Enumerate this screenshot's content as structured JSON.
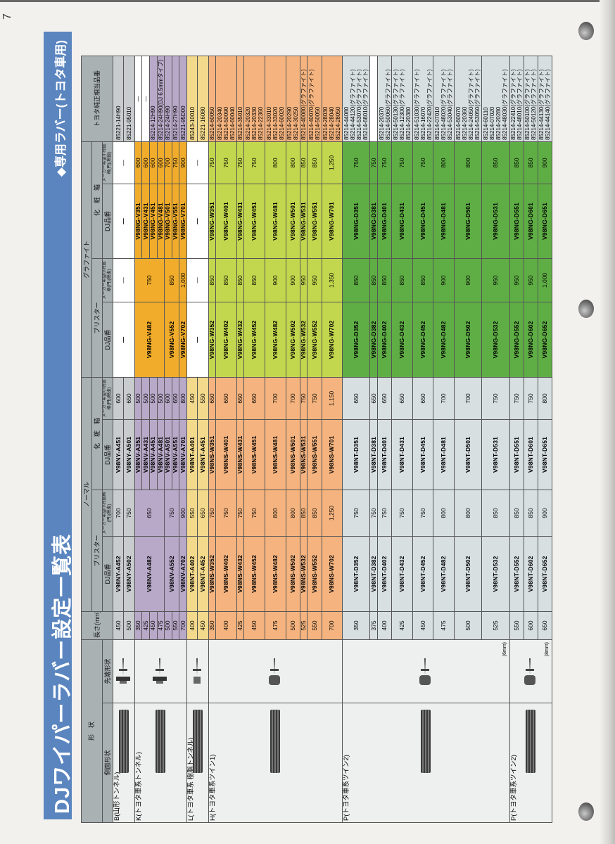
{
  "page_number": "7",
  "title": "DJワイパーラバー設定一覧表",
  "subtitle": "◆専用ラバー(トヨタ車用)",
  "colors": {
    "band": "#5a85bf",
    "header": "#a9b1b3"
  },
  "headers": {
    "shape": "形　状",
    "side_shape": "側面形状",
    "tip_shape": "先端形状",
    "length": "長さ(mm)",
    "normal": "ノーマル",
    "graphite": "グラファイト",
    "blister": "ブリスター",
    "box": "化　粧　箱",
    "dj": "DJ品番",
    "price": "メーカー希望小売価格(円)(税抜)",
    "toyota": "トヨタ純正相当品番"
  },
  "groups": [
    {
      "side": "B(山形トンネル)",
      "tip_icon": "tunnel-tip-icon",
      "color": "#c8ccce",
      "gcolor": "#ffffff",
      "rows": [
        {
          "len": "450",
          "nb": {
            "dj": "V98NY-A452",
            "price": "700"
          },
          "nx": {
            "dj": "V98NY-A451",
            "price": "600"
          },
          "gb": {
            "dj": "—",
            "price": "—",
            "rows": 2
          },
          "gx": {
            "dj": "—",
            "price": "—",
            "rows": 2
          },
          "toyota": [
            "85221-14H90"
          ]
        },
        {
          "len": "500",
          "nb": {
            "dj": "V98NY-A502",
            "price": "750"
          },
          "nx": {
            "dj": "V98NY-A501",
            "price": "650"
          },
          "toyota": [
            "85221-95010"
          ]
        }
      ]
    },
    {
      "side": "K(トヨタ車系トンネル)",
      "tip_icon": "tunnel-tip-icon",
      "color": "#b9a9c9",
      "gcolor": "#f0ac2a",
      "rows": [
        {
          "len": "350",
          "nb": {
            "dj": "V98NV-A482",
            "price": "650",
            "rows": 4
          },
          "nx": {
            "dj": "V98NV-A351",
            "price": "500"
          },
          "gb": {
            "dj": "V98NG-V482",
            "price": "750",
            "rows": 4
          },
          "gx": {
            "dj": "V98NG-V351",
            "price": "600"
          },
          "toyota": [
            "—"
          ]
        },
        {
          "len": "425",
          "nx": {
            "dj": "V98NV-A431",
            "price": "500"
          },
          "gx": {
            "dj": "V98NG-V431",
            "price": "600"
          },
          "toyota": [
            "—"
          ]
        },
        {
          "len": "450",
          "nx": {
            "dj": "V98NV-A451",
            "price": "500"
          },
          "gx": {
            "dj": "V98NG-V451",
            "price": "600"
          },
          "toyota": [
            "85214-12H90"
          ]
        },
        {
          "len": "475",
          "nx": {
            "dj": "V98NV-A481",
            "price": "500"
          },
          "gx": {
            "dj": "V98NG-V481",
            "price": "600"
          },
          "toyota": [
            "85214-24H90(DJ 6.5mmタイプ)"
          ]
        },
        {
          "len": "500",
          "nb": {
            "dj": "V98NV-A552",
            "price": "750",
            "rows": 2
          },
          "nx": {
            "dj": "V98NV-A501",
            "price": "600"
          },
          "gb": {
            "dj": "V98NG-V552",
            "price": "850",
            "rows": 2
          },
          "gx": {
            "dj": "V98NG-V501",
            "price": "700"
          },
          "toyota": [
            "85214-24H90"
          ]
        },
        {
          "len": "550",
          "nx": {
            "dj": "V98NV-A551",
            "price": "650"
          },
          "gx": {
            "dj": "V98NG-V551",
            "price": "750"
          },
          "toyota": [
            "85214-27H90"
          ]
        },
        {
          "len": "700",
          "nb": {
            "dj": "V98NV-A702",
            "price": "900"
          },
          "nx": {
            "dj": "V98NV-A701",
            "price": "800"
          },
          "gb": {
            "dj": "V98NG-V702",
            "price": "1,000"
          },
          "gx": {
            "dj": "V98NG-V701",
            "price": "900"
          },
          "toyota": [
            "85221-95D00"
          ]
        }
      ]
    },
    {
      "side": "L(トヨタ車系 樹脂トンネル)",
      "tip_icon": "resin-tunnel-tip-icon",
      "color": "#f3d98c",
      "gcolor": "#ffffff",
      "rows": [
        {
          "len": "400",
          "nb": {
            "dj": "V98NT-A402",
            "price": "550"
          },
          "nx": {
            "dj": "V98NT-A401",
            "price": "450"
          },
          "gb": {
            "dj": "—",
            "price": "—",
            "rows": 2
          },
          "gx": {
            "dj": "—",
            "price": "—",
            "rows": 2
          },
          "toyota": [
            "85243-10010"
          ]
        },
        {
          "len": "450",
          "nb": {
            "dj": "V98NT-A452",
            "price": "650"
          },
          "nx": {
            "dj": "V98NT-A451",
            "price": "550"
          },
          "toyota": [
            "85221-16080"
          ]
        }
      ]
    },
    {
      "side": "H(トヨタ車系ツイン1)",
      "tip_icon": "twin-tip-icon",
      "color": "#f5b47f",
      "gcolor": "#c3d74e",
      "rows": [
        {
          "len": "350",
          "nb": {
            "dj": "V98NS-W352",
            "price": "750"
          },
          "nx": {
            "dj": "V98NS-W351",
            "price": "650"
          },
          "gb": {
            "dj": "V98NG-W352",
            "price": "850"
          },
          "gx": {
            "dj": "V98NG-W351",
            "price": "750"
          },
          "toyota": [
            "85214-60050"
          ]
        },
        {
          "len": "400",
          "nb": {
            "dj": "V98NS-W402",
            "price": "750"
          },
          "nx": {
            "dj": "V98NS-W401",
            "price": "650"
          },
          "gb": {
            "dj": "V98NG-W402",
            "price": "850"
          },
          "gx": {
            "dj": "V98NG-W401",
            "price": "750"
          },
          "toyota": [
            "85214-20340",
            "85214-50090",
            "85214-60040"
          ]
        },
        {
          "len": "425",
          "nb": {
            "dj": "V98NS-W432",
            "price": "750"
          },
          "nx": {
            "dj": "V98NS-W431",
            "price": "650"
          },
          "gb": {
            "dj": "V98NG-W432",
            "price": "850"
          },
          "gx": {
            "dj": "V98NG-W431",
            "price": "750"
          },
          "toyota": [
            "85214-35010"
          ]
        },
        {
          "len": "450",
          "nb": {
            "dj": "V98NS-W452",
            "price": "750"
          },
          "nx": {
            "dj": "V98NS-W451",
            "price": "650"
          },
          "gb": {
            "dj": "V98NG-W452",
            "price": "850"
          },
          "gx": {
            "dj": "V98NG-W451",
            "price": "750"
          },
          "toyota": [
            "85214-20320",
            "85214-20330",
            "85214-22360"
          ]
        },
        {
          "len": "475",
          "nb": {
            "dj": "V98NS-W482",
            "price": "800"
          },
          "nx": {
            "dj": "V98NS-W481",
            "price": "700"
          },
          "gb": {
            "dj": "V98NG-W482",
            "price": "900"
          },
          "gx": {
            "dj": "V98NG-W481",
            "price": "800"
          },
          "toyota": [
            "85214-33010",
            "85214-33020",
            "85214-60020"
          ]
        },
        {
          "len": "500",
          "nb": {
            "dj": "V98NS-W502",
            "price": "800"
          },
          "nx": {
            "dj": "V98NS-W501",
            "price": "700"
          },
          "gb": {
            "dj": "V98NG-W502",
            "price": "900"
          },
          "gx": {
            "dj": "V98NG-W501",
            "price": "800"
          },
          "toyota": [
            "85214-20290",
            "85214-30250"
          ]
        },
        {
          "len": "525",
          "nb": {
            "dj": "V98NS-W532",
            "price": "850"
          },
          "nx": {
            "dj": "V98NS-W531",
            "price": "750"
          },
          "gb": {
            "dj": "V98NG-W532",
            "price": "950"
          },
          "gx": {
            "dj": "V98NG-W531",
            "price": "850"
          },
          "toyota": [
            "85214-40080(グラファイト)"
          ]
        },
        {
          "len": "550",
          "nb": {
            "dj": "V98NS-W552",
            "price": "850"
          },
          "nx": {
            "dj": "V98NS-W551",
            "price": "750"
          },
          "gb": {
            "dj": "V98NG-W552",
            "price": "950"
          },
          "gx": {
            "dj": "V98NG-W551",
            "price": "850"
          },
          "toyota": [
            "85214-40070(グラファイト)",
            "85214-50050"
          ]
        },
        {
          "len": "700",
          "nb": {
            "dj": "V98NS-W702",
            "price": "1,250"
          },
          "nx": {
            "dj": "V98NS-W701",
            "price": "1,150"
          },
          "gb": {
            "dj": "V98NG-W702",
            "price": "1,350"
          },
          "gx": {
            "dj": "V98NG-W701",
            "price": "1,250"
          },
          "toyota": [
            "85214-28030",
            "85214-28040",
            "85214-28050"
          ]
        }
      ]
    },
    {
      "side": "P(トヨタ車系ツイン2)",
      "tip_icon": "twin2-tip-icon",
      "tip_note": "(6mm)",
      "color": "#d7dfe1",
      "gcolor": "#5fae45",
      "rows": [
        {
          "len": "350",
          "nb": {
            "dj": "V98NT-D352",
            "price": "750"
          },
          "nx": {
            "dj": "V98NT-D351",
            "price": "650"
          },
          "gb": {
            "dj": "V98NG-D352",
            "price": "850"
          },
          "gx": {
            "dj": "V98NG-D351",
            "price": "750"
          },
          "toyota": [
            "85214-44080",
            "85214-44120(グラファイト)",
            "85214-53070(グラファイト)",
            "85214-68010(グラファイト)"
          ]
        },
        {
          "len": "375",
          "nb": {
            "dj": "V98NT-D382",
            "price": "750"
          },
          "nx": {
            "dj": "V98NT-D381",
            "price": "650"
          },
          "gb": {
            "dj": "V98NG-D382",
            "price": "850"
          },
          "gx": {
            "dj": "V98NG-D381",
            "price": "750"
          },
          "toyota": []
        },
        {
          "len": "400",
          "nb": {
            "dj": "V98NT-D402",
            "price": "750"
          },
          "nx": {
            "dj": "V98NT-D401",
            "price": "650"
          },
          "gb": {
            "dj": "V98NG-D402",
            "price": "850"
          },
          "gx": {
            "dj": "V98NG-D401",
            "price": "750"
          },
          "toyota": [
            "85214-20370",
            "85214-50060(グラファイト)"
          ]
        },
        {
          "len": "425",
          "nb": {
            "dj": "V98NT-D432",
            "price": "750"
          },
          "nx": {
            "dj": "V98NT-D431",
            "price": "650"
          },
          "gb": {
            "dj": "V98NG-D432",
            "price": "850"
          },
          "gx": {
            "dj": "V98NG-D431",
            "price": "750"
          },
          "toyota": [
            "85214-50130(グラファイト)",
            "85214-12300(グラファイト)",
            "85214-20380"
          ]
        },
        {
          "len": "450",
          "nb": {
            "dj": "V98NT-D452",
            "price": "750"
          },
          "nx": {
            "dj": "V98NT-D451",
            "price": "650"
          },
          "gb": {
            "dj": "V98NG-D452",
            "price": "850"
          },
          "gx": {
            "dj": "V98NG-D451",
            "price": "750"
          },
          "toyota": [
            "85214-51030(グラファイト)",
            "85214-16070",
            "85214-22420(グラファイト)"
          ]
        },
        {
          "len": "475",
          "nb": {
            "dj": "V98NT-D482",
            "price": "800"
          },
          "nx": {
            "dj": "V98NT-D481",
            "price": "700"
          },
          "gb": {
            "dj": "V98NG-D482",
            "price": "900"
          },
          "gx": {
            "dj": "V98NG-D481",
            "price": "800"
          },
          "toyota": [
            "85214-07010",
            "85214-48020(グラファイト)",
            "85214-53040(グラファイト)"
          ]
        },
        {
          "len": "500",
          "nb": {
            "dj": "V98NT-D502",
            "price": "800"
          },
          "nx": {
            "dj": "V98NT-D501",
            "price": "700"
          },
          "gb": {
            "dj": "V98NG-D502",
            "price": "900"
          },
          "gx": {
            "dj": "V98NG-D501",
            "price": "800"
          },
          "toyota": [
            "85214-60070",
            "85214-20360",
            "85214-24050(グラファイト)",
            "85214-53050(グラファイト)"
          ]
        },
        {
          "len": "525",
          "nb": {
            "dj": "V98NT-D532",
            "price": "850"
          },
          "nx": {
            "dj": "V98NT-D531",
            "price": "750"
          },
          "gb": {
            "dj": "V98NG-D532",
            "price": "950"
          },
          "gx": {
            "dj": "V98NG-D531",
            "price": "850"
          },
          "toyota": [
            "85214-60110",
            "85214-07020",
            "85214-20280",
            "85214-48030(グラファイト)"
          ]
        }
      ]
    },
    {
      "side": "P(トヨタ車系ツイン2)",
      "tip_icon": "twin2-tip-icon",
      "tip_note": "(8mm)",
      "color": "#d7dfe1",
      "gcolor": "#5fae45",
      "rows": [
        {
          "len": "550",
          "nb": {
            "dj": "V98NT-D552",
            "price": "850"
          },
          "nx": {
            "dj": "V98NT-D551",
            "price": "750"
          },
          "gb": {
            "dj": "V98NG-D552",
            "price": "950"
          },
          "gx": {
            "dj": "V98NG-D551",
            "price": "850"
          },
          "toyota": [
            "85214-22410(グラファイト)",
            "85214-48010(グラファイト)"
          ]
        },
        {
          "len": "600",
          "nb": {
            "dj": "V98NT-D602",
            "price": "850"
          },
          "nx": {
            "dj": "V98NT-D601",
            "price": "750"
          },
          "gb": {
            "dj": "V98NG-D602",
            "price": "950"
          },
          "gx": {
            "dj": "V98NG-D601",
            "price": "850"
          },
          "toyota": [
            "85214-50100(グラファイト)",
            "85214-50120(グラファイト)"
          ]
        },
        {
          "len": "650",
          "nb": {
            "dj": "V98NT-D652",
            "price": "900"
          },
          "nx": {
            "dj": "V98NT-D651",
            "price": "800"
          },
          "gb": {
            "dj": "V98NG-D652",
            "price": "1,000"
          },
          "gx": {
            "dj": "V98NG-D651",
            "price": "900"
          },
          "toyota": [
            "85214-44130(グラファイト)",
            "85214-44140(グラファイト)"
          ]
        }
      ]
    }
  ]
}
